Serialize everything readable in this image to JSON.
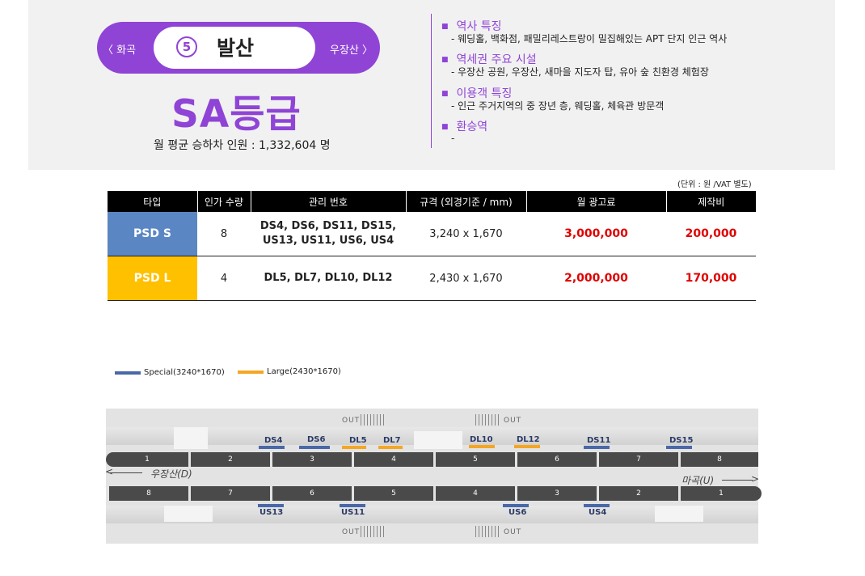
{
  "station": {
    "prev": "〈 화곡",
    "next": "우장산 〉",
    "line_number": "5",
    "name": "발산",
    "grade": "SA등급",
    "monthly_riders_label": "월 평균 승하차 인원 :",
    "monthly_riders_value": "1,332,604 명"
  },
  "info": [
    {
      "title": "역사 특징",
      "desc": "-  웨딩홀, 백화점, 패밀리레스트랑이 밀집해있는 APT 단지 인근 역사"
    },
    {
      "title": "역세권 주요 시설",
      "desc": "-  우장산 공원, 우장산, 새마을 지도자 탑, 유아 숲 친환경 체험장"
    },
    {
      "title": "이용객 특징",
      "desc": "-  인근 주거지역의 중 장년 층, 웨딩홀, 체육관 방문객"
    },
    {
      "title": "환승역",
      "desc": "-"
    }
  ],
  "table": {
    "unit_note": "(단위 : 원 /VAT 별도)",
    "headers": [
      "타입",
      "인가 수량",
      "관리 번호",
      "규격 (외경기준 / mm)",
      "월 광고료",
      "제작비"
    ],
    "rows": [
      {
        "type": "PSD S",
        "qty": "8",
        "ids_line1": "DS4, DS6, DS11, DS15,",
        "ids_line2": "US13, US11, US6, US4",
        "size": "3,240 x 1,670",
        "monthly_fee": "3,000,000",
        "production_fee": "200,000"
      },
      {
        "type": "PSD L",
        "qty": "4",
        "ids_line1": "DL5, DL7, DL10, DL12",
        "ids_line2": "",
        "size": "2,430 x 1,670",
        "monthly_fee": "2,000,000",
        "production_fee": "170,000"
      }
    ]
  },
  "legend": {
    "special": "Special(3240*1670)",
    "large": "Large(2430*1670)"
  },
  "platform": {
    "exit_label": "OUT",
    "dir_left": "우장산(D)",
    "dir_right": "마곡(U)",
    "top_cars": [
      "1",
      "2",
      "3",
      "4",
      "5",
      "6",
      "7",
      "8"
    ],
    "bottom_cars": [
      "8",
      "7",
      "6",
      "5",
      "4",
      "3",
      "2",
      "1"
    ],
    "top_markers": [
      "DS4",
      "DS6",
      "DL5",
      "DL7",
      "DL10",
      "DL12",
      "DS11",
      "DS15"
    ],
    "bottom_markers": [
      "US13",
      "US11",
      "US6",
      "US4"
    ]
  },
  "colors": {
    "accent_purple": "#8f44d6",
    "psd_s": "#5b86c4",
    "psd_l": "#ffc000",
    "price_red": "#e00000",
    "special_line": "#4a68a8",
    "large_line": "#f5a623"
  }
}
